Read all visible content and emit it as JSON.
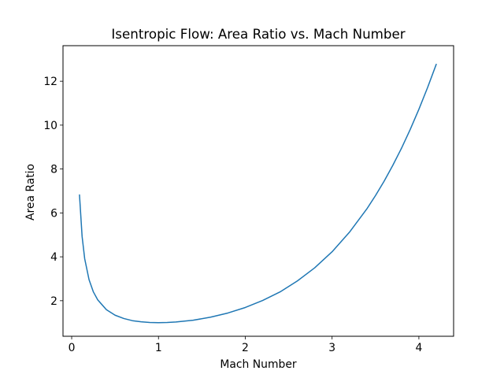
{
  "chart_data": {
    "type": "line",
    "title": "Isentropic Flow: Area Ratio vs. Mach Number",
    "xlabel": "Mach Number",
    "ylabel": "Area Ratio",
    "xlim": [
      -0.1,
      4.4
    ],
    "ylim": [
      0.38,
      13.62
    ],
    "xticks": [
      0,
      1,
      2,
      3,
      4
    ],
    "yticks": [
      2,
      4,
      6,
      8,
      10,
      12
    ],
    "grid": false,
    "legend": "none",
    "series": [
      {
        "color": "#1f77b4",
        "x": [
          0.09,
          0.12,
          0.15,
          0.2,
          0.25,
          0.3,
          0.4,
          0.5,
          0.6,
          0.7,
          0.8,
          0.9,
          1.0,
          1.1,
          1.2,
          1.4,
          1.6,
          1.8,
          2.0,
          2.2,
          2.4,
          2.6,
          2.8,
          3.0,
          3.2,
          3.4,
          3.5,
          3.6,
          3.7,
          3.8,
          3.9,
          4.0,
          4.1,
          4.2
        ],
        "y": [
          6.82,
          4.93,
          3.91,
          2.96,
          2.4,
          2.04,
          1.59,
          1.34,
          1.19,
          1.09,
          1.04,
          1.01,
          1.0,
          1.01,
          1.03,
          1.11,
          1.25,
          1.44,
          1.69,
          2.01,
          2.4,
          2.9,
          3.5,
          4.23,
          5.12,
          6.18,
          6.79,
          7.45,
          8.17,
          8.95,
          9.8,
          10.72,
          11.71,
          12.77
        ]
      }
    ]
  }
}
